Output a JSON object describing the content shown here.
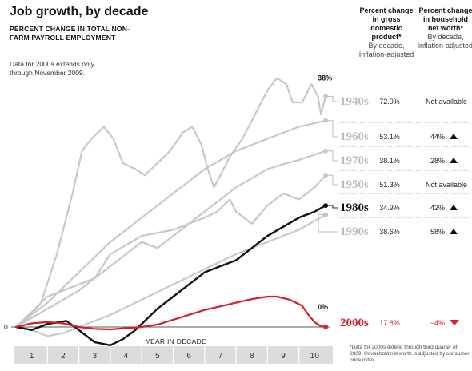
{
  "title": "Job growth, by decade",
  "subtitle": "PERCENT CHANGE IN TOTAL NON-FARM PAYROLL EMPLOYMENT",
  "note": "Data for 2000s extends only through November 2009.",
  "columns": {
    "gdp": {
      "title": "Percent change in gross domestic product*",
      "sub": "By decade, Inflation-adjusted"
    },
    "networth": {
      "title": "Percent change in household net worth*",
      "sub": "By decade, inflation-adjusted"
    }
  },
  "footnote": "*Data for 2000s extend through third quarter of 2009. Household net worth is adjusted by consumer price index.",
  "colors": {
    "gray_series": "#c8c8c8",
    "highlight": "#111111",
    "accent": "#d61f26",
    "axis_band": "#dcdcdc"
  },
  "chart_data": {
    "type": "line",
    "xlabel": "YEAR IN DECADE",
    "x_ticks": [
      "1",
      "2",
      "3",
      "4",
      "5",
      "6",
      "7",
      "8",
      "9",
      "10"
    ],
    "y_zero_label": "0",
    "series": [
      {
        "name": "1940s",
        "gdp": "72.0%",
        "networth": "Not available",
        "end_label": "38%",
        "points": [
          [
            0,
            0
          ],
          [
            0.3,
            1
          ],
          [
            0.8,
            4
          ],
          [
            1.3,
            12
          ],
          [
            1.8,
            22
          ],
          [
            2.1,
            29
          ],
          [
            2.4,
            31
          ],
          [
            2.8,
            33
          ],
          [
            3.1,
            31
          ],
          [
            3.4,
            27
          ],
          [
            3.8,
            26
          ],
          [
            4.1,
            25
          ],
          [
            4.5,
            27
          ],
          [
            4.9,
            29
          ],
          [
            5.3,
            32
          ],
          [
            5.6,
            33
          ],
          [
            5.9,
            30
          ],
          [
            6.1,
            26
          ],
          [
            6.3,
            23
          ],
          [
            6.5,
            25
          ],
          [
            6.8,
            28
          ],
          [
            7.2,
            31
          ],
          [
            7.6,
            35
          ],
          [
            8.0,
            39
          ],
          [
            8.3,
            41
          ],
          [
            8.6,
            40
          ],
          [
            8.8,
            37
          ],
          [
            9.1,
            37
          ],
          [
            9.4,
            40
          ],
          [
            9.6,
            38
          ],
          [
            9.7,
            35
          ],
          [
            9.85,
            38
          ]
        ]
      },
      {
        "name": "1960s",
        "gdp": "53.1%",
        "networth": "44%",
        "trend": "up",
        "points": [
          [
            0,
            0
          ],
          [
            1,
            4
          ],
          [
            2,
            9
          ],
          [
            3,
            14
          ],
          [
            4,
            18
          ],
          [
            5,
            22
          ],
          [
            6,
            26
          ],
          [
            7,
            29
          ],
          [
            8,
            31
          ],
          [
            9,
            33
          ],
          [
            9.85,
            34
          ]
        ]
      },
      {
        "name": "1970s",
        "gdp": "38.1%",
        "networth": "28%",
        "trend": "up",
        "points": [
          [
            0,
            0
          ],
          [
            1,
            3
          ],
          [
            2,
            6
          ],
          [
            3,
            10
          ],
          [
            4,
            14
          ],
          [
            4.5,
            13
          ],
          [
            5,
            15
          ],
          [
            6,
            19
          ],
          [
            7,
            23
          ],
          [
            8,
            26
          ],
          [
            8.6,
            27
          ],
          [
            9,
            27.5
          ],
          [
            9.85,
            29
          ]
        ]
      },
      {
        "name": "1950s",
        "gdp": "51.3%",
        "networth": "Not available",
        "points": [
          [
            0,
            0
          ],
          [
            1,
            5
          ],
          [
            2,
            7
          ],
          [
            2.5,
            8
          ],
          [
            3,
            12
          ],
          [
            4,
            15
          ],
          [
            5,
            16
          ],
          [
            6,
            18
          ],
          [
            6.4,
            19
          ],
          [
            6.8,
            21
          ],
          [
            7,
            19
          ],
          [
            7.5,
            17
          ],
          [
            8,
            20
          ],
          [
            8.5,
            22
          ],
          [
            9,
            21
          ],
          [
            9.5,
            23
          ],
          [
            9.85,
            25
          ]
        ]
      },
      {
        "name": "1980s",
        "gdp": "34.9%",
        "networth": "42%",
        "trend": "up",
        "points": [
          [
            0,
            0
          ],
          [
            0.5,
            -0.5
          ],
          [
            1,
            0.5
          ],
          [
            1.6,
            1
          ],
          [
            2,
            -0.5
          ],
          [
            2.5,
            -2.5
          ],
          [
            3,
            -3
          ],
          [
            3.4,
            -2
          ],
          [
            3.8,
            -0.5
          ],
          [
            4.1,
            1
          ],
          [
            4.5,
            3
          ],
          [
            5,
            5
          ],
          [
            5.5,
            7
          ],
          [
            6,
            9
          ],
          [
            6.5,
            10
          ],
          [
            7,
            11
          ],
          [
            7.5,
            13
          ],
          [
            8,
            15
          ],
          [
            8.5,
            16.5
          ],
          [
            9,
            18
          ],
          [
            9.5,
            19
          ],
          [
            9.85,
            20
          ]
        ]
      },
      {
        "name": "1990s",
        "gdp": "38.6%",
        "networth": "58%",
        "trend": "up",
        "points": [
          [
            0,
            0
          ],
          [
            0.5,
            -0.5
          ],
          [
            1,
            -1.5
          ],
          [
            1.5,
            -1
          ],
          [
            2,
            0
          ],
          [
            3,
            2
          ],
          [
            4,
            4.5
          ],
          [
            5,
            7
          ],
          [
            6,
            9.5
          ],
          [
            7,
            12
          ],
          [
            8,
            14
          ],
          [
            9,
            16
          ],
          [
            9.85,
            18.5
          ]
        ]
      },
      {
        "name": "2000s",
        "gdp": "17.8%",
        "networth": "−4%",
        "trend": "down",
        "end_label": "0%",
        "points": [
          [
            0,
            0
          ],
          [
            0.5,
            0.6
          ],
          [
            1,
            0.8
          ],
          [
            1.5,
            0.6
          ],
          [
            2,
            0
          ],
          [
            2.5,
            -0.3
          ],
          [
            3,
            -0.4
          ],
          [
            3.5,
            -0.2
          ],
          [
            4,
            0
          ],
          [
            4.5,
            0.4
          ],
          [
            5,
            1.2
          ],
          [
            5.5,
            2
          ],
          [
            6,
            2.8
          ],
          [
            6.5,
            3.4
          ],
          [
            7,
            4
          ],
          [
            7.5,
            4.6
          ],
          [
            8,
            5
          ],
          [
            8.3,
            5
          ],
          [
            8.7,
            4.5
          ],
          [
            9.1,
            3.5
          ],
          [
            9.3,
            2
          ],
          [
            9.5,
            0.8
          ],
          [
            9.7,
            0.1
          ],
          [
            9.85,
            0
          ]
        ]
      }
    ],
    "ylim": [
      -4,
      42
    ],
    "xlim": [
      0,
      10
    ],
    "grid": false
  }
}
